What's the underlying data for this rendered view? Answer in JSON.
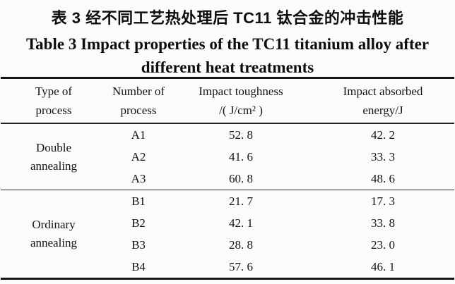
{
  "caption": {
    "zh": "表 3  经不同工艺热处理后 TC11 钛合金的冲击性能",
    "en_line1": "Table 3   Impact properties of the TC11 titanium alloy after",
    "en_line2": "different heat treatments"
  },
  "table": {
    "headers": [
      {
        "line1": "Type of",
        "line2": "process"
      },
      {
        "line1": "Number of",
        "line2": "process"
      },
      {
        "line1": "Impact toughness",
        "line2": "/( J/cm² )"
      },
      {
        "line1": "Impact absorbed",
        "line2": "energy/J"
      }
    ],
    "groups": [
      {
        "type_of_process": "Double annealing",
        "rows": [
          {
            "number": "A1",
            "impact_toughness": "52. 8",
            "impact_absorbed_energy": "42. 2"
          },
          {
            "number": "A2",
            "impact_toughness": "41. 6",
            "impact_absorbed_energy": "33. 3"
          },
          {
            "number": "A3",
            "impact_toughness": "60. 8",
            "impact_absorbed_energy": "48. 6"
          }
        ]
      },
      {
        "type_of_process": "Ordinary annealing",
        "rows": [
          {
            "number": "B1",
            "impact_toughness": "21. 7",
            "impact_absorbed_energy": "17. 3"
          },
          {
            "number": "B2",
            "impact_toughness": "42. 1",
            "impact_absorbed_energy": "33. 8"
          },
          {
            "number": "B3",
            "impact_toughness": "28. 8",
            "impact_absorbed_energy": "23. 0"
          },
          {
            "number": "B4",
            "impact_toughness": "57. 6",
            "impact_absorbed_energy": "46. 1"
          }
        ]
      }
    ]
  },
  "colors": {
    "text": "#141414",
    "rule_heavy": "#161616",
    "rule_light": "#2b2b2b",
    "background": "#fbfbfb"
  }
}
